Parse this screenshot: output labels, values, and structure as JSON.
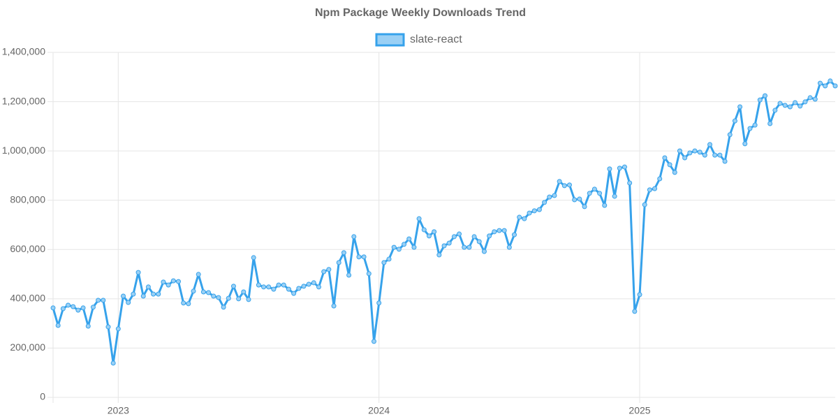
{
  "chart_data": {
    "type": "line",
    "title": "Npm Package Weekly Downloads Trend",
    "x": [
      0,
      1,
      2,
      3,
      4,
      5,
      6,
      7,
      8,
      9,
      10,
      11,
      12,
      13,
      14,
      15,
      16,
      17,
      18,
      19,
      20,
      21,
      22,
      23,
      24,
      25,
      26,
      27,
      28,
      29,
      30,
      31,
      32,
      33,
      34,
      35,
      36,
      37,
      38,
      39,
      40,
      41,
      42,
      43,
      44,
      45,
      46,
      47,
      48,
      49,
      50,
      51,
      52,
      53,
      54,
      55,
      56,
      57,
      58,
      59,
      60,
      61,
      62,
      63,
      64,
      65,
      66,
      67,
      68,
      69,
      70,
      71,
      72,
      73,
      74,
      75,
      76,
      77,
      78,
      79,
      80,
      81,
      82,
      83,
      84,
      85,
      86,
      87,
      88,
      89,
      90,
      91,
      92,
      93,
      94,
      95,
      96,
      97,
      98,
      99,
      100,
      101,
      102,
      103,
      104,
      105,
      106,
      107,
      108,
      109,
      110,
      111,
      112,
      113,
      114,
      115,
      116,
      117,
      118,
      119,
      120,
      121,
      122,
      123,
      124,
      125,
      126,
      127,
      128,
      129,
      130,
      131,
      132,
      133,
      134,
      135,
      136,
      137,
      138,
      139,
      140,
      141,
      142,
      143,
      144,
      145,
      146,
      147,
      148,
      149,
      150,
      151,
      152,
      153,
      154,
      155,
      156
    ],
    "series": [
      {
        "name": "slate-react",
        "color": "#36a2eb",
        "fill": "#9ad0f5",
        "values": [
          363000,
          292000,
          360000,
          374000,
          368000,
          354000,
          363000,
          289000,
          366000,
          394000,
          394000,
          286000,
          139000,
          278000,
          411000,
          385000,
          419000,
          507000,
          411000,
          448000,
          419000,
          419000,
          468000,
          456000,
          473000,
          470000,
          383000,
          380000,
          431000,
          499000,
          428000,
          425000,
          411000,
          405000,
          366000,
          402000,
          451000,
          400000,
          428000,
          397000,
          567000,
          456000,
          448000,
          448000,
          439000,
          456000,
          456000,
          439000,
          422000,
          442000,
          451000,
          459000,
          465000,
          448000,
          510000,
          519000,
          371000,
          547000,
          587000,
          496000,
          652000,
          570000,
          570000,
          502000,
          227000,
          383000,
          547000,
          561000,
          609000,
          601000,
          621000,
          643000,
          609000,
          725000,
          680000,
          655000,
          672000,
          578000,
          615000,
          626000,
          652000,
          663000,
          609000,
          609000,
          652000,
          632000,
          592000,
          655000,
          672000,
          677000,
          677000,
          609000,
          660000,
          731000,
          725000,
          748000,
          757000,
          762000,
          791000,
          813000,
          819000,
          876000,
          859000,
          862000,
          802000,
          805000,
          774000,
          828000,
          845000,
          828000,
          779000,
          927000,
          816000,
          930000,
          935000,
          870000,
          349000,
          417000,
          782000,
          842000,
          847000,
          887000,
          972000,
          944000,
          913000,
          1000000,
          972000,
          992000,
          1000000,
          995000,
          983000,
          1026000,
          983000,
          983000,
          958000,
          1066000,
          1122000,
          1179000,
          1029000,
          1091000,
          1105000,
          1207000,
          1224000,
          1111000,
          1165000,
          1193000,
          1185000,
          1179000,
          1196000,
          1182000,
          1199000,
          1216000,
          1210000,
          1275000,
          1264000,
          1284000,
          1264000
        ]
      }
    ],
    "xlim": [
      0,
      156
    ],
    "xticks": [
      {
        "value": 13,
        "label": "2023"
      },
      {
        "value": 65,
        "label": "2024"
      },
      {
        "value": 117,
        "label": "2025"
      }
    ],
    "ylim": [
      0,
      1400000
    ],
    "yticks": [
      0,
      {
        "value": 200000,
        "label": "200,000"
      },
      {
        "value": 400000,
        "label": "400,000"
      },
      {
        "value": 600000,
        "label": "600,000"
      },
      {
        "value": 800000,
        "label": "800,000"
      },
      {
        "value": 1000000,
        "label": "1,000,000"
      },
      {
        "value": 1200000,
        "label": "1,200,000"
      },
      {
        "value": 1400000,
        "label": "1,400,000"
      }
    ],
    "grid": true,
    "legend": "top"
  }
}
